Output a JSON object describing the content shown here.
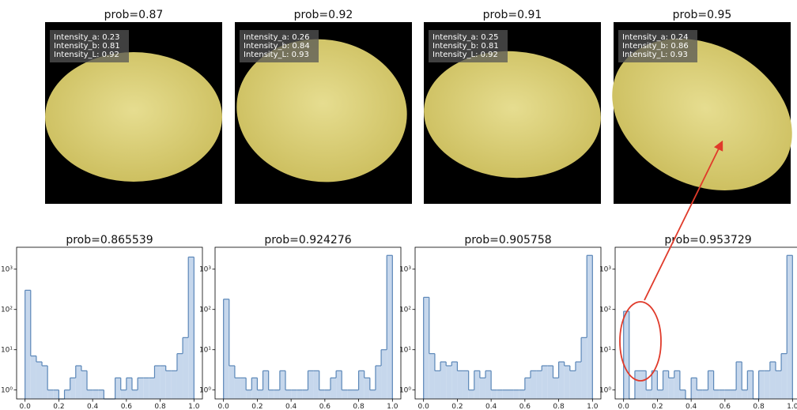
{
  "images": [
    {
      "title": "prob=0.87",
      "annotations": [
        "Intensity_a: 0.23",
        "Intensity_b: 0.81",
        "Intensity_L: 0.92"
      ]
    },
    {
      "title": "prob=0.92",
      "annotations": [
        "Intensity_a: 0.26",
        "Intensity_b: 0.84",
        "Intensity_L: 0.93"
      ]
    },
    {
      "title": "prob=0.91",
      "annotations": [
        "Intensity_a: 0.25",
        "Intensity_b: 0.81",
        "Intensity_L: 0.92"
      ]
    },
    {
      "title": "prob=0.95",
      "annotations": [
        "Intensity_a: 0.24",
        "Intensity_b: 0.86",
        "Intensity_L: 0.93"
      ]
    }
  ],
  "chart_data": [
    {
      "type": "histogram",
      "title": "prob=0.865539",
      "log_y": true,
      "color": "#c6d7ec",
      "edge_color": "#5b87b8",
      "bins": [
        0,
        0.0333,
        0.0667,
        0.1,
        0.1333,
        0.1667,
        0.2,
        0.2333,
        0.2667,
        0.3,
        0.3333,
        0.3667,
        0.4,
        0.4333,
        0.4667,
        0.5,
        0.5333,
        0.5667,
        0.6,
        0.6333,
        0.6667,
        0.7,
        0.7333,
        0.7667,
        0.8,
        0.8333,
        0.8667,
        0.9,
        0.9333,
        0.9667,
        1
      ],
      "values": [
        300,
        7,
        5,
        4,
        1,
        1,
        0,
        1,
        2,
        4,
        3,
        1,
        1,
        1,
        0,
        0,
        2,
        1,
        2,
        1,
        2,
        2,
        2,
        4,
        4,
        3,
        3,
        8,
        20,
        2000
      ],
      "xlim": [
        -0.05,
        1.05
      ],
      "ylim": [
        0.6,
        3500
      ],
      "xticks": [
        {
          "value": 0,
          "label": "0.0"
        },
        {
          "value": 0.2,
          "label": "0.2"
        },
        {
          "value": 0.4,
          "label": "0.4"
        },
        {
          "value": 0.6,
          "label": "0.6"
        },
        {
          "value": 0.8,
          "label": "0.8"
        },
        {
          "value": 1,
          "label": "1.0"
        }
      ],
      "yticks": [
        {
          "value": 1,
          "label": "10⁰"
        },
        {
          "value": 10,
          "label": "10¹"
        },
        {
          "value": 100,
          "label": "10²"
        },
        {
          "value": 1000,
          "label": "10³"
        }
      ]
    },
    {
      "type": "histogram",
      "title": "prob=0.924276",
      "log_y": true,
      "color": "#c6d7ec",
      "edge_color": "#5b87b8",
      "bins": [
        0,
        0.0333,
        0.0667,
        0.1,
        0.1333,
        0.1667,
        0.2,
        0.2333,
        0.2667,
        0.3,
        0.3333,
        0.3667,
        0.4,
        0.4333,
        0.4667,
        0.5,
        0.5333,
        0.5667,
        0.6,
        0.6333,
        0.6667,
        0.7,
        0.7333,
        0.7667,
        0.8,
        0.8333,
        0.8667,
        0.9,
        0.9333,
        0.9667,
        1
      ],
      "values": [
        180,
        4,
        2,
        2,
        1,
        2,
        1,
        3,
        1,
        1,
        3,
        1,
        1,
        1,
        1,
        3,
        3,
        1,
        1,
        2,
        3,
        1,
        1,
        1,
        3,
        2,
        1,
        4,
        10,
        2200
      ],
      "xlim": [
        -0.05,
        1.05
      ],
      "ylim": [
        0.6,
        3500
      ],
      "xticks": [
        {
          "value": 0,
          "label": "0.0"
        },
        {
          "value": 0.2,
          "label": "0.2"
        },
        {
          "value": 0.4,
          "label": "0.4"
        },
        {
          "value": 0.6,
          "label": "0.6"
        },
        {
          "value": 0.8,
          "label": "0.8"
        },
        {
          "value": 1,
          "label": "1.0"
        }
      ],
      "yticks": [
        {
          "value": 1,
          "label": "10⁰"
        },
        {
          "value": 10,
          "label": "10¹"
        },
        {
          "value": 100,
          "label": "10²"
        },
        {
          "value": 1000,
          "label": "10³"
        }
      ]
    },
    {
      "type": "histogram",
      "title": "prob=0.905758",
      "log_y": true,
      "color": "#c6d7ec",
      "edge_color": "#5b87b8",
      "bins": [
        0,
        0.0333,
        0.0667,
        0.1,
        0.1333,
        0.1667,
        0.2,
        0.2333,
        0.2667,
        0.3,
        0.3333,
        0.3667,
        0.4,
        0.4333,
        0.4667,
        0.5,
        0.5333,
        0.5667,
        0.6,
        0.6333,
        0.6667,
        0.7,
        0.7333,
        0.7667,
        0.8,
        0.8333,
        0.8667,
        0.9,
        0.9333,
        0.9667,
        1
      ],
      "values": [
        200,
        8,
        3,
        5,
        4,
        5,
        3,
        3,
        1,
        3,
        2,
        3,
        1,
        1,
        1,
        1,
        1,
        1,
        2,
        3,
        3,
        4,
        4,
        2,
        5,
        4,
        3,
        5,
        20,
        2200
      ],
      "xlim": [
        -0.05,
        1.05
      ],
      "ylim": [
        0.6,
        3500
      ],
      "xticks": [
        {
          "value": 0,
          "label": "0.0"
        },
        {
          "value": 0.2,
          "label": "0.2"
        },
        {
          "value": 0.4,
          "label": "0.4"
        },
        {
          "value": 0.6,
          "label": "0.6"
        },
        {
          "value": 0.8,
          "label": "0.8"
        },
        {
          "value": 1,
          "label": "1.0"
        }
      ],
      "yticks": [
        {
          "value": 1,
          "label": "10⁰"
        },
        {
          "value": 10,
          "label": "10¹"
        },
        {
          "value": 100,
          "label": "10²"
        },
        {
          "value": 1000,
          "label": "10³"
        }
      ]
    },
    {
      "type": "histogram",
      "title": "prob=0.953729",
      "log_y": true,
      "color": "#c6d7ec",
      "edge_color": "#5b87b8",
      "bins": [
        0,
        0.0333,
        0.0667,
        0.1,
        0.1333,
        0.1667,
        0.2,
        0.2333,
        0.2667,
        0.3,
        0.3333,
        0.3667,
        0.4,
        0.4333,
        0.4667,
        0.5,
        0.5333,
        0.5667,
        0.6,
        0.6333,
        0.6667,
        0.7,
        0.7333,
        0.7667,
        0.8,
        0.8333,
        0.8667,
        0.9,
        0.9333,
        0.9667,
        1
      ],
      "values": [
        90,
        0,
        3,
        3,
        1,
        3,
        1,
        3,
        2,
        3,
        1,
        0,
        2,
        1,
        1,
        3,
        1,
        1,
        1,
        1,
        5,
        1,
        3,
        0,
        3,
        3,
        5,
        3,
        8,
        2200
      ],
      "xlim": [
        -0.05,
        1.05
      ],
      "ylim": [
        0.6,
        3500
      ],
      "xticks": [
        {
          "value": 0,
          "label": "0.0"
        },
        {
          "value": 0.2,
          "label": "0.2"
        },
        {
          "value": 0.4,
          "label": "0.4"
        },
        {
          "value": 0.6,
          "label": "0.6"
        },
        {
          "value": 0.8,
          "label": "0.8"
        },
        {
          "value": 1,
          "label": "1.0"
        }
      ],
      "yticks": [
        {
          "value": 1,
          "label": "10⁰"
        },
        {
          "value": 10,
          "label": "10¹"
        },
        {
          "value": 100,
          "label": "10²"
        },
        {
          "value": 1000,
          "label": "10³"
        }
      ]
    }
  ]
}
